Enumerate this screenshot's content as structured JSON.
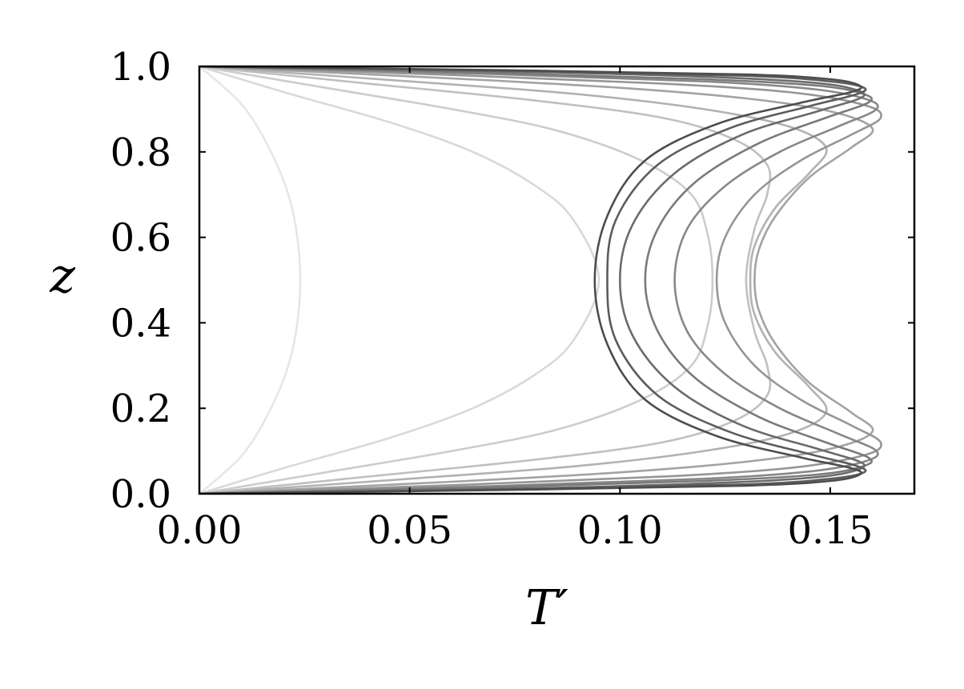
{
  "chart_data": {
    "type": "line",
    "title": "",
    "xlabel": "T′",
    "ylabel": "z",
    "xlim": [
      0,
      0.17
    ],
    "ylim": [
      0,
      1
    ],
    "xticks": [
      0,
      0.05,
      0.1,
      0.15
    ],
    "xtick_labels": [
      "0.00",
      "0.05",
      "0.10",
      "0.15"
    ],
    "yticks": [
      0,
      0.2,
      0.4,
      0.6,
      0.8,
      1.0
    ],
    "ytick_labels": [
      "0.0",
      "0.2",
      "0.4",
      "0.6",
      "0.8",
      "1.0"
    ],
    "grid": false,
    "legend": "none",
    "series": [
      {
        "color": "#e6e6e6",
        "points": [
          [
            0,
            0
          ],
          [
            0.006,
            0.05
          ],
          [
            0.011,
            0.1
          ],
          [
            0.016,
            0.18
          ],
          [
            0.0205,
            0.28
          ],
          [
            0.023,
            0.38
          ],
          [
            0.024,
            0.5
          ],
          [
            0.023,
            0.62
          ],
          [
            0.0205,
            0.72
          ],
          [
            0.016,
            0.82
          ],
          [
            0.011,
            0.9
          ],
          [
            0.006,
            0.95
          ],
          [
            0,
            1
          ]
        ]
      },
      {
        "color": "#d9d9d9",
        "points": [
          [
            0,
            0
          ],
          [
            0.02,
            0.06
          ],
          [
            0.045,
            0.13
          ],
          [
            0.065,
            0.2
          ],
          [
            0.08,
            0.28
          ],
          [
            0.089,
            0.36
          ],
          [
            0.095,
            0.5
          ],
          [
            0.089,
            0.64
          ],
          [
            0.08,
            0.72
          ],
          [
            0.065,
            0.8
          ],
          [
            0.045,
            0.87
          ],
          [
            0.02,
            0.94
          ],
          [
            0,
            1
          ]
        ]
      },
      {
        "color": "#cccccc",
        "points": [
          [
            0,
            0
          ],
          [
            0.03,
            0.05
          ],
          [
            0.06,
            0.1
          ],
          [
            0.085,
            0.15
          ],
          [
            0.105,
            0.22
          ],
          [
            0.117,
            0.3
          ],
          [
            0.121,
            0.4
          ],
          [
            0.122,
            0.5
          ],
          [
            0.121,
            0.6
          ],
          [
            0.117,
            0.7
          ],
          [
            0.105,
            0.78
          ],
          [
            0.085,
            0.85
          ],
          [
            0.06,
            0.9
          ],
          [
            0.03,
            0.95
          ],
          [
            0,
            1
          ]
        ]
      },
      {
        "color": "#c0c0c0",
        "points": [
          [
            0,
            0
          ],
          [
            0.04,
            0.04
          ],
          [
            0.08,
            0.08
          ],
          [
            0.11,
            0.12
          ],
          [
            0.127,
            0.17
          ],
          [
            0.135,
            0.23
          ],
          [
            0.135,
            0.3
          ],
          [
            0.132,
            0.38
          ],
          [
            0.13,
            0.5
          ],
          [
            0.132,
            0.62
          ],
          [
            0.135,
            0.7
          ],
          [
            0.135,
            0.77
          ],
          [
            0.127,
            0.83
          ],
          [
            0.11,
            0.88
          ],
          [
            0.08,
            0.92
          ],
          [
            0.04,
            0.96
          ],
          [
            0,
            1
          ]
        ]
      },
      {
        "color": "#b2b2b2",
        "points": [
          [
            0,
            0
          ],
          [
            0.05,
            0.035
          ],
          [
            0.09,
            0.065
          ],
          [
            0.12,
            0.1
          ],
          [
            0.14,
            0.14
          ],
          [
            0.149,
            0.19
          ],
          [
            0.145,
            0.25
          ],
          [
            0.137,
            0.33
          ],
          [
            0.132,
            0.42
          ],
          [
            0.131,
            0.5
          ],
          [
            0.132,
            0.58
          ],
          [
            0.137,
            0.67
          ],
          [
            0.145,
            0.75
          ],
          [
            0.149,
            0.81
          ],
          [
            0.14,
            0.86
          ],
          [
            0.12,
            0.9
          ],
          [
            0.09,
            0.935
          ],
          [
            0.05,
            0.965
          ],
          [
            0,
            1
          ]
        ]
      },
      {
        "color": "#a3a3a3",
        "points": [
          [
            0,
            0
          ],
          [
            0.06,
            0.028
          ],
          [
            0.1,
            0.05
          ],
          [
            0.13,
            0.075
          ],
          [
            0.15,
            0.105
          ],
          [
            0.16,
            0.145
          ],
          [
            0.155,
            0.19
          ],
          [
            0.145,
            0.26
          ],
          [
            0.137,
            0.35
          ],
          [
            0.133,
            0.43
          ],
          [
            0.132,
            0.5
          ],
          [
            0.133,
            0.57
          ],
          [
            0.137,
            0.65
          ],
          [
            0.145,
            0.74
          ],
          [
            0.155,
            0.81
          ],
          [
            0.16,
            0.855
          ],
          [
            0.15,
            0.895
          ],
          [
            0.13,
            0.925
          ],
          [
            0.1,
            0.95
          ],
          [
            0.06,
            0.972
          ],
          [
            0,
            1
          ]
        ]
      },
      {
        "color": "#969696",
        "points": [
          [
            0,
            0
          ],
          [
            0.06,
            0.02
          ],
          [
            0.11,
            0.04
          ],
          [
            0.14,
            0.06
          ],
          [
            0.158,
            0.09
          ],
          [
            0.162,
            0.12
          ],
          [
            0.155,
            0.16
          ],
          [
            0.143,
            0.22
          ],
          [
            0.132,
            0.3
          ],
          [
            0.125,
            0.4
          ],
          [
            0.123,
            0.5
          ],
          [
            0.125,
            0.6
          ],
          [
            0.132,
            0.7
          ],
          [
            0.143,
            0.78
          ],
          [
            0.155,
            0.84
          ],
          [
            0.162,
            0.88
          ],
          [
            0.158,
            0.91
          ],
          [
            0.14,
            0.94
          ],
          [
            0.11,
            0.96
          ],
          [
            0.06,
            0.98
          ],
          [
            0,
            1
          ]
        ]
      },
      {
        "color": "#888888",
        "points": [
          [
            0,
            0
          ],
          [
            0.07,
            0.018
          ],
          [
            0.12,
            0.035
          ],
          [
            0.145,
            0.052
          ],
          [
            0.158,
            0.075
          ],
          [
            0.161,
            0.1
          ],
          [
            0.152,
            0.14
          ],
          [
            0.138,
            0.2
          ],
          [
            0.125,
            0.28
          ],
          [
            0.116,
            0.38
          ],
          [
            0.113,
            0.5
          ],
          [
            0.116,
            0.62
          ],
          [
            0.125,
            0.72
          ],
          [
            0.138,
            0.8
          ],
          [
            0.152,
            0.86
          ],
          [
            0.161,
            0.9
          ],
          [
            0.158,
            0.925
          ],
          [
            0.145,
            0.948
          ],
          [
            0.12,
            0.965
          ],
          [
            0.07,
            0.982
          ],
          [
            0,
            1
          ]
        ]
      },
      {
        "color": "#7a7a7a",
        "points": [
          [
            0,
            0
          ],
          [
            0.07,
            0.015
          ],
          [
            0.12,
            0.03
          ],
          [
            0.147,
            0.045
          ],
          [
            0.158,
            0.065
          ],
          [
            0.159,
            0.085
          ],
          [
            0.149,
            0.12
          ],
          [
            0.133,
            0.18
          ],
          [
            0.118,
            0.27
          ],
          [
            0.109,
            0.38
          ],
          [
            0.106,
            0.5
          ],
          [
            0.109,
            0.62
          ],
          [
            0.118,
            0.73
          ],
          [
            0.133,
            0.82
          ],
          [
            0.149,
            0.88
          ],
          [
            0.159,
            0.915
          ],
          [
            0.158,
            0.935
          ],
          [
            0.147,
            0.955
          ],
          [
            0.12,
            0.97
          ],
          [
            0.07,
            0.985
          ],
          [
            0,
            1
          ]
        ]
      },
      {
        "color": "#6b6b6b",
        "points": [
          [
            0,
            0
          ],
          [
            0.08,
            0.013
          ],
          [
            0.125,
            0.026
          ],
          [
            0.148,
            0.04
          ],
          [
            0.157,
            0.058
          ],
          [
            0.157,
            0.075
          ],
          [
            0.147,
            0.105
          ],
          [
            0.129,
            0.16
          ],
          [
            0.113,
            0.25
          ],
          [
            0.103,
            0.37
          ],
          [
            0.1,
            0.5
          ],
          [
            0.103,
            0.63
          ],
          [
            0.113,
            0.75
          ],
          [
            0.129,
            0.84
          ],
          [
            0.147,
            0.895
          ],
          [
            0.157,
            0.925
          ],
          [
            0.157,
            0.942
          ],
          [
            0.148,
            0.96
          ],
          [
            0.125,
            0.974
          ],
          [
            0.08,
            0.987
          ],
          [
            0,
            1
          ]
        ]
      },
      {
        "color": "#5c5c5c",
        "points": [
          [
            0,
            0
          ],
          [
            0.08,
            0.011
          ],
          [
            0.13,
            0.022
          ],
          [
            0.15,
            0.035
          ],
          [
            0.158,
            0.05
          ],
          [
            0.156,
            0.066
          ],
          [
            0.145,
            0.093
          ],
          [
            0.126,
            0.145
          ],
          [
            0.109,
            0.23
          ],
          [
            0.099,
            0.36
          ],
          [
            0.097,
            0.5
          ],
          [
            0.099,
            0.64
          ],
          [
            0.109,
            0.77
          ],
          [
            0.126,
            0.855
          ],
          [
            0.145,
            0.907
          ],
          [
            0.156,
            0.934
          ],
          [
            0.158,
            0.95
          ],
          [
            0.15,
            0.965
          ],
          [
            0.13,
            0.978
          ],
          [
            0.08,
            0.989
          ],
          [
            0,
            1
          ]
        ]
      },
      {
        "color": "#4d4d4d",
        "points": [
          [
            0,
            0
          ],
          [
            0.08,
            0.01
          ],
          [
            0.13,
            0.019
          ],
          [
            0.15,
            0.03
          ],
          [
            0.157,
            0.045
          ],
          [
            0.155,
            0.06
          ],
          [
            0.143,
            0.085
          ],
          [
            0.123,
            0.135
          ],
          [
            0.106,
            0.22
          ],
          [
            0.097,
            0.35
          ],
          [
            0.094,
            0.5
          ],
          [
            0.097,
            0.65
          ],
          [
            0.106,
            0.78
          ],
          [
            0.123,
            0.865
          ],
          [
            0.143,
            0.915
          ],
          [
            0.155,
            0.94
          ],
          [
            0.157,
            0.955
          ],
          [
            0.15,
            0.97
          ],
          [
            0.13,
            0.981
          ],
          [
            0.08,
            0.99
          ],
          [
            0,
            1
          ]
        ]
      }
    ]
  }
}
